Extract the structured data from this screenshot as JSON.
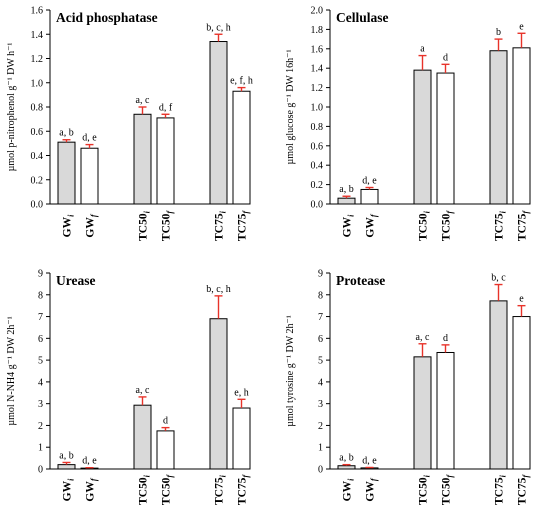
{
  "chart_data": [
    {
      "type": "bar",
      "title": "Acid phosphatase",
      "ylabel": "µmol p-nitrophenol g⁻¹ DW h⁻¹",
      "ylim": [
        0,
        1.6
      ],
      "yticks": [
        "0.0",
        "0.2",
        "0.4",
        "0.6",
        "0.8",
        "1.0",
        "1.2",
        "1.4",
        "1.6"
      ],
      "categories": [
        {
          "main": "GW",
          "sub": "i"
        },
        {
          "main": "GW",
          "sub": "f"
        },
        {
          "main": "TC50",
          "sub": "i"
        },
        {
          "main": "TC50",
          "sub": "f"
        },
        {
          "main": "TC75",
          "sub": "i"
        },
        {
          "main": "TC75",
          "sub": "f"
        }
      ],
      "values": [
        0.51,
        0.46,
        0.74,
        0.71,
        1.34,
        0.93
      ],
      "errors": [
        0.02,
        0.03,
        0.06,
        0.03,
        0.06,
        0.03
      ],
      "fills": [
        "#d9d9d9",
        "#ffffff",
        "#d9d9d9",
        "#ffffff",
        "#d9d9d9",
        "#ffffff"
      ],
      "labels": [
        "a, b",
        "d, e",
        "a, c",
        "d, f",
        "b, c, h",
        "e, f, h"
      ]
    },
    {
      "type": "bar",
      "title": "Cellulase",
      "ylabel": "µmol glucose g⁻¹ DW 16h⁻¹",
      "ylim": [
        0,
        2.0
      ],
      "yticks": [
        "0.0",
        "0.2",
        "0.4",
        "0.6",
        "0.8",
        "1.0",
        "1.2",
        "1.4",
        "1.6",
        "1.8",
        "2.0"
      ],
      "categories": [
        {
          "main": "GW",
          "sub": "i"
        },
        {
          "main": "GW",
          "sub": "f"
        },
        {
          "main": "TC50",
          "sub": "i"
        },
        {
          "main": "TC50",
          "sub": "f"
        },
        {
          "main": "TC75",
          "sub": "i"
        },
        {
          "main": "TC75",
          "sub": "f"
        }
      ],
      "values": [
        0.06,
        0.15,
        1.38,
        1.35,
        1.58,
        1.61
      ],
      "errors": [
        0.02,
        0.02,
        0.15,
        0.09,
        0.12,
        0.15
      ],
      "fills": [
        "#d9d9d9",
        "#ffffff",
        "#d9d9d9",
        "#ffffff",
        "#d9d9d9",
        "#ffffff"
      ],
      "labels": [
        "a, b",
        "d, e",
        "a",
        "d",
        "b",
        "e"
      ]
    },
    {
      "type": "bar",
      "title": "Urease",
      "ylabel": "µmol N-NH4 g⁻¹ DW 2h⁻¹",
      "ylim": [
        0,
        9
      ],
      "yticks": [
        "0",
        "1",
        "2",
        "3",
        "4",
        "5",
        "6",
        "7",
        "8",
        "9"
      ],
      "categories": [
        {
          "main": "GW",
          "sub": "i"
        },
        {
          "main": "GW",
          "sub": "f"
        },
        {
          "main": "TC50",
          "sub": "i"
        },
        {
          "main": "TC50",
          "sub": "f"
        },
        {
          "main": "TC75",
          "sub": "i"
        },
        {
          "main": "TC75",
          "sub": "f"
        }
      ],
      "values": [
        0.2,
        0.04,
        2.93,
        1.75,
        6.9,
        2.8
      ],
      "errors": [
        0.1,
        0.02,
        0.38,
        0.15,
        1.05,
        0.4
      ],
      "fills": [
        "#d9d9d9",
        "#ffffff",
        "#d9d9d9",
        "#ffffff",
        "#d9d9d9",
        "#ffffff"
      ],
      "labels": [
        "a, b",
        "d, e",
        "a, c",
        "d",
        "b, c, h",
        "e, h"
      ]
    },
    {
      "type": "bar",
      "title": "Protease",
      "ylabel": "µmol tyrosine g⁻¹ DW 2h⁻¹",
      "ylim": [
        0,
        9
      ],
      "yticks": [
        "0",
        "1",
        "2",
        "3",
        "4",
        "5",
        "6",
        "7",
        "8",
        "9"
      ],
      "categories": [
        {
          "main": "GW",
          "sub": "i"
        },
        {
          "main": "GW",
          "sub": "f"
        },
        {
          "main": "TC50",
          "sub": "i"
        },
        {
          "main": "TC50",
          "sub": "f"
        },
        {
          "main": "TC75",
          "sub": "i"
        },
        {
          "main": "TC75",
          "sub": "f"
        }
      ],
      "values": [
        0.15,
        0.05,
        5.15,
        5.35,
        7.72,
        7.0
      ],
      "errors": [
        0.05,
        0.02,
        0.6,
        0.35,
        0.75,
        0.5
      ],
      "fills": [
        "#d9d9d9",
        "#ffffff",
        "#d9d9d9",
        "#ffffff",
        "#d9d9d9",
        "#ffffff"
      ],
      "labels": [
        "a, b",
        "d, e",
        "a, c",
        "d",
        "b, c",
        "e"
      ]
    }
  ],
  "colors": {
    "bar_stroke": "#000000",
    "error_bar": "#e8332a",
    "axis": "#000000"
  }
}
